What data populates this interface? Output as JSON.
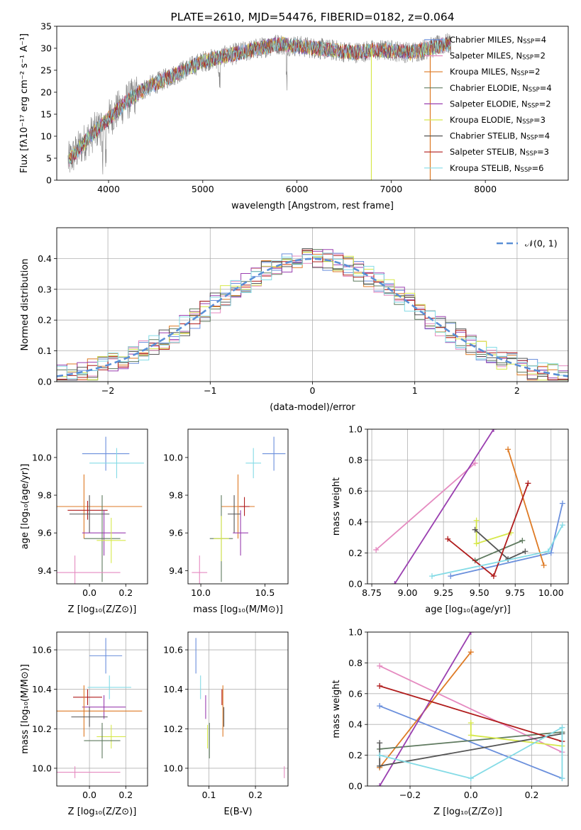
{
  "chart_data": [
    {
      "id": "spectrum",
      "type": "line",
      "title": "PLATE=2610, MJD=54476, FIBERID=0182, z=0.064",
      "xlabel": "wavelength [Angstrom, rest frame]",
      "ylabel": "Flux [fλ10⁻¹⁷ erg cm⁻² s⁻¹ A⁻¹]",
      "xlim": [
        3450,
        8880
      ],
      "ylim": [
        0,
        35
      ],
      "xticks": [
        4000,
        5000,
        6000,
        7000,
        8000
      ],
      "yticks": [
        0,
        5,
        10,
        15,
        20,
        25,
        30,
        35
      ],
      "grid": false,
      "legend_position": "right",
      "series": [
        {
          "name": "Chabrier MILES, N",
          "sub": "SSP",
          "suffix": "=4",
          "color": "#6a8fdc"
        },
        {
          "name": "Salpeter MILES, N",
          "sub": "SSP",
          "suffix": "=2",
          "color": "#e58ac0"
        },
        {
          "name": "Kroupa MILES, N",
          "sub": "SSP",
          "suffix": "=2",
          "color": "#de7a24"
        },
        {
          "name": "Chabrier ELODIE, N",
          "sub": "SSP",
          "suffix": "=4",
          "color": "#5f7a5f"
        },
        {
          "name": "Salpeter ELODIE, N",
          "sub": "SSP",
          "suffix": "=2",
          "color": "#9a3fb0"
        },
        {
          "name": "Kroupa ELODIE, N",
          "sub": "SSP",
          "suffix": "=3",
          "color": "#d6e84a"
        },
        {
          "name": "Chabrier STELIB, N",
          "sub": "SSP",
          "suffix": "=4",
          "color": "#555555"
        },
        {
          "name": "Salpeter STELIB, N",
          "sub": "SSP",
          "suffix": "=3",
          "color": "#b01c1c"
        },
        {
          "name": "Kroupa STELIB, N",
          "sub": "SSP",
          "suffix": "=6",
          "color": "#84dbe6"
        }
      ],
      "data_trend": {
        "x": [
          3600,
          3800,
          4000,
          4200,
          4400,
          4600,
          4800,
          5000,
          5200,
          5400,
          5600,
          5800,
          6000,
          6200,
          6400,
          6600,
          6800,
          7000,
          7200,
          7400,
          7600
        ],
        "y": [
          5,
          10,
          14,
          18,
          21,
          23,
          25,
          27,
          28,
          29,
          30,
          31,
          30.5,
          30,
          29.5,
          29,
          29.5,
          29.5,
          29,
          30,
          31
        ]
      }
    },
    {
      "id": "residual_histogram",
      "type": "histogram",
      "xlabel": "(data-model)/error",
      "ylabel": "Normed distribution",
      "xlim": [
        -2.5,
        2.5
      ],
      "ylim": [
        0,
        0.5
      ],
      "xticks": [
        -2,
        -1,
        0,
        1,
        2
      ],
      "yticks": [
        0.0,
        0.1,
        0.2,
        0.3,
        0.4
      ],
      "grid": true,
      "legend": [
        {
          "label": "𝒩(0, 1)",
          "style": "dashed",
          "color": "#5a8fd6"
        }
      ],
      "legend_position": "top-right",
      "reference_curve": {
        "type": "normal",
        "mean": 0,
        "sigma": 1
      }
    },
    {
      "id": "age_vs_Z",
      "type": "errorbar",
      "xlabel": "Z [log₁₀(Z/Z⊙)]",
      "ylabel": "age  [log₁₀(age/yr)]",
      "xlim": [
        -0.18,
        0.32
      ],
      "ylim": [
        9.33,
        10.15
      ],
      "xticks": [
        0.0,
        0.2
      ],
      "yticks": [
        9.4,
        9.6,
        9.8,
        10.0
      ],
      "grid": false,
      "points": [
        {
          "series": 0,
          "x": 0.09,
          "y": 10.02,
          "xerr": 0.13,
          "yerr": 0.09
        },
        {
          "series": 8,
          "x": 0.15,
          "y": 9.97,
          "xerr": 0.15,
          "yerr": 0.08
        },
        {
          "series": 2,
          "x": -0.03,
          "y": 9.74,
          "xerr": 0.32,
          "yerr": 0.17
        },
        {
          "series": 7,
          "x": -0.01,
          "y": 9.72,
          "xerr": 0.11,
          "yerr": 0.05
        },
        {
          "series": 6,
          "x": 0.0,
          "y": 9.7,
          "xerr": 0.11,
          "yerr": 0.1
        },
        {
          "series": 4,
          "x": 0.08,
          "y": 9.6,
          "xerr": 0.12,
          "yerr": 0.12
        },
        {
          "series": 3,
          "x": 0.07,
          "y": 9.57,
          "xerr": 0.1,
          "yerr": 0.23
        },
        {
          "series": 5,
          "x": 0.12,
          "y": 9.56,
          "xerr": 0.08,
          "yerr": 0.12
        },
        {
          "series": 1,
          "x": -0.08,
          "y": 9.39,
          "xerr": 0.25,
          "yerr": 0.09
        }
      ]
    },
    {
      "id": "age_vs_mass",
      "type": "errorbar",
      "xlabel": "mass [log₁₀(M/M⊙)]",
      "ylabel": "",
      "xlim": [
        9.9,
        10.68
      ],
      "ylim": [
        9.33,
        10.15
      ],
      "xticks": [
        10.0,
        10.5
      ],
      "yticks": [
        9.4,
        9.6,
        9.8,
        10.0
      ],
      "grid": false,
      "points": [
        {
          "series": 0,
          "x": 10.57,
          "y": 10.02,
          "xerr": 0.09,
          "yerr": 0.09
        },
        {
          "series": 8,
          "x": 10.41,
          "y": 9.97,
          "xerr": 0.06,
          "yerr": 0.08
        },
        {
          "series": 2,
          "x": 10.29,
          "y": 9.74,
          "xerr": 0.13,
          "yerr": 0.17
        },
        {
          "series": 7,
          "x": 10.34,
          "y": 9.74,
          "xerr": 0.04,
          "yerr": 0.05
        },
        {
          "series": 6,
          "x": 10.26,
          "y": 9.7,
          "xerr": 0.05,
          "yerr": 0.1
        },
        {
          "series": 4,
          "x": 10.31,
          "y": 9.6,
          "xerr": 0.06,
          "yerr": 0.12
        },
        {
          "series": 3,
          "x": 10.16,
          "y": 9.57,
          "xerr": 0.09,
          "yerr": 0.23
        },
        {
          "series": 5,
          "x": 10.16,
          "y": 9.57,
          "xerr": 0.06,
          "yerr": 0.12
        },
        {
          "series": 1,
          "x": 9.99,
          "y": 9.39,
          "xerr": 0.06,
          "yerr": 0.09
        }
      ]
    },
    {
      "id": "massweight_vs_age",
      "type": "line",
      "xlabel": "age  [log₁₀(age/yr)]",
      "ylabel": "mass weight",
      "xlim": [
        8.72,
        10.12
      ],
      "ylim": [
        0,
        1
      ],
      "xticks": [
        8.75,
        9.0,
        9.25,
        9.5,
        9.75,
        10.0
      ],
      "yticks": [
        0.0,
        0.2,
        0.4,
        0.6,
        0.8,
        1.0
      ],
      "grid": true,
      "series": [
        {
          "series": 0,
          "x": [
            9.3,
            10.0,
            10.08
          ],
          "y": [
            0.05,
            0.2,
            0.52
          ]
        },
        {
          "series": 1,
          "x": [
            8.78,
            9.47
          ],
          "y": [
            0.22,
            0.78
          ]
        },
        {
          "series": 2,
          "x": [
            9.7,
            9.95
          ],
          "y": [
            0.87,
            0.12
          ]
        },
        {
          "series": 3,
          "x": [
            9.47,
            9.8
          ],
          "y": [
            0.15,
            0.28
          ]
        },
        {
          "series": 4,
          "x": [
            8.91,
            9.6
          ],
          "y": [
            0.0,
            1.0
          ]
        },
        {
          "series": 5,
          "x": [
            9.48,
            9.48,
            9.72
          ],
          "y": [
            0.41,
            0.26,
            0.33
          ]
        },
        {
          "series": 6,
          "x": [
            9.47,
            9.7,
            9.82
          ],
          "y": [
            0.35,
            0.16,
            0.21
          ]
        },
        {
          "series": 7,
          "x": [
            9.28,
            9.6,
            9.84
          ],
          "y": [
            0.29,
            0.05,
            0.65
          ]
        },
        {
          "series": 8,
          "x": [
            9.17,
            9.98,
            10.08
          ],
          "y": [
            0.05,
            0.21,
            0.38
          ]
        }
      ]
    },
    {
      "id": "mass_vs_Z",
      "type": "errorbar",
      "xlabel": "Z [log₁₀(Z/Z⊙)]",
      "ylabel": "mass [log₁₀(M/M⊙)]",
      "xlim": [
        -0.18,
        0.32
      ],
      "ylim": [
        9.91,
        10.69
      ],
      "xticks": [
        0.0,
        0.2
      ],
      "yticks": [
        10.0,
        10.2,
        10.4,
        10.6
      ],
      "grid": true,
      "points": [
        {
          "series": 0,
          "x": 0.09,
          "y": 10.57,
          "xerr": 0.09,
          "yerr": 0.09
        },
        {
          "series": 8,
          "x": 0.11,
          "y": 10.41,
          "xerr": 0.12,
          "yerr": 0.06
        },
        {
          "series": 7,
          "x": -0.01,
          "y": 10.36,
          "xerr": 0.08,
          "yerr": 0.04
        },
        {
          "series": 4,
          "x": 0.08,
          "y": 10.31,
          "xerr": 0.12,
          "yerr": 0.06
        },
        {
          "series": 2,
          "x": -0.03,
          "y": 10.29,
          "xerr": 0.32,
          "yerr": 0.13
        },
        {
          "series": 6,
          "x": 0.0,
          "y": 10.26,
          "xerr": 0.1,
          "yerr": 0.05
        },
        {
          "series": 5,
          "x": 0.12,
          "y": 10.16,
          "xerr": 0.08,
          "yerr": 0.06
        },
        {
          "series": 3,
          "x": 0.07,
          "y": 10.14,
          "xerr": 0.1,
          "yerr": 0.09
        },
        {
          "series": 1,
          "x": -0.08,
          "y": 9.98,
          "xerr": 0.25,
          "yerr": 0.03
        }
      ]
    },
    {
      "id": "mass_vs_ebv",
      "type": "errorbar",
      "xlabel": "E(B-V)",
      "ylabel": "",
      "xlim": [
        0.055,
        0.27
      ],
      "ylim": [
        9.91,
        10.69
      ],
      "xticks": [
        0.1,
        0.2
      ],
      "yticks": [
        10.0,
        10.2,
        10.4,
        10.6
      ],
      "grid": true,
      "points": [
        {
          "series": 0,
          "x": 0.072,
          "y": 10.57,
          "xerr": 0.0,
          "yerr": 0.09
        },
        {
          "series": 8,
          "x": 0.082,
          "y": 10.41,
          "xerr": 0.0,
          "yerr": 0.06
        },
        {
          "series": 4,
          "x": 0.093,
          "y": 10.31,
          "xerr": 0.0,
          "yerr": 0.06
        },
        {
          "series": 5,
          "x": 0.097,
          "y": 10.16,
          "xerr": 0.0,
          "yerr": 0.06
        },
        {
          "series": 3,
          "x": 0.101,
          "y": 10.14,
          "xerr": 0.0,
          "yerr": 0.09
        },
        {
          "series": 7,
          "x": 0.128,
          "y": 10.36,
          "xerr": 0.0,
          "yerr": 0.04
        },
        {
          "series": 6,
          "x": 0.132,
          "y": 10.26,
          "xerr": 0.0,
          "yerr": 0.05
        },
        {
          "series": 2,
          "x": 0.13,
          "y": 10.29,
          "xerr": 0.0,
          "yerr": 0.13
        },
        {
          "series": 1,
          "x": 0.262,
          "y": 9.98,
          "xerr": 0.0,
          "yerr": 0.03
        }
      ]
    },
    {
      "id": "massweight_vs_Z",
      "type": "line",
      "xlabel": "Z [log₁₀(Z/Z⊙)]",
      "ylabel": "mass weight",
      "xlim": [
        -0.34,
        0.32
      ],
      "ylim": [
        0,
        1
      ],
      "xticks": [
        -0.2,
        0.0,
        0.2
      ],
      "yticks": [
        0.0,
        0.2,
        0.4,
        0.6,
        0.8,
        1.0
      ],
      "grid": true,
      "series": [
        {
          "series": 0,
          "x": [
            -0.3,
            0.3
          ],
          "y": [
            0.52,
            0.05
          ]
        },
        {
          "series": 1,
          "x": [
            -0.3,
            0.3
          ],
          "y": [
            0.78,
            0.22
          ]
        },
        {
          "series": 2,
          "x": [
            -0.3,
            0.0
          ],
          "y": [
            0.12,
            0.87
          ]
        },
        {
          "series": 3,
          "x": [
            -0.3,
            0.3
          ],
          "y": [
            0.24,
            0.35
          ]
        },
        {
          "series": 4,
          "x": [
            -0.3,
            0.0
          ],
          "y": [
            0.0,
            1.0
          ]
        },
        {
          "series": 5,
          "x": [
            0.0,
            0.0,
            0.3
          ],
          "y": [
            0.41,
            0.33,
            0.26
          ]
        },
        {
          "series": 6,
          "x": [
            -0.3,
            -0.3,
            0.3
          ],
          "y": [
            0.28,
            0.13,
            0.34
          ]
        },
        {
          "series": 7,
          "x": [
            -0.3,
            0.3
          ],
          "y": [
            0.65,
            0.29
          ]
        },
        {
          "series": 8,
          "x": [
            -0.3,
            0.0,
            0.3,
            0.3
          ],
          "y": [
            0.2,
            0.05,
            0.38,
            0.05
          ]
        }
      ]
    }
  ]
}
